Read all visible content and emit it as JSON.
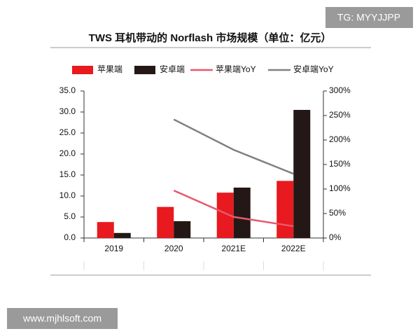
{
  "watermarks": [
    "TG: MYYJJPP",
    "www.mjhlsoft.com"
  ],
  "chart_data": {
    "type": "bar",
    "title": "TWS 耳机带动的 Norflash 市场规模（单位：亿元）",
    "categories": [
      "2019",
      "2020",
      "2021E",
      "2022E"
    ],
    "series": [
      {
        "name": "苹果端",
        "type": "bar",
        "color": "#e8191f",
        "values": [
          3.8,
          7.4,
          10.8,
          13.6
        ]
      },
      {
        "name": "安卓端",
        "type": "bar",
        "color": "#231815",
        "values": [
          1.2,
          4.0,
          12.0,
          30.5
        ]
      },
      {
        "name": "苹果端YoY",
        "type": "line",
        "axis": "y2",
        "color": "#e8586e",
        "values": [
          null,
          97,
          43,
          24
        ]
      },
      {
        "name": "安卓端YoY",
        "type": "line",
        "axis": "y2",
        "color": "#808080",
        "values": [
          null,
          242,
          180,
          131
        ]
      }
    ],
    "ylim": [
      0,
      35
    ],
    "yticks": [
      {
        "value": 0,
        "label": "0.0"
      },
      {
        "value": 5,
        "label": "5.0"
      },
      {
        "value": 10,
        "label": "10.0"
      },
      {
        "value": 15,
        "label": "15.0"
      },
      {
        "value": 20,
        "label": "20.0"
      },
      {
        "value": 25,
        "label": "25.0"
      },
      {
        "value": 30,
        "label": "30.0"
      },
      {
        "value": 35,
        "label": "35.0"
      }
    ],
    "y2lim": [
      0,
      300
    ],
    "y2ticks": [
      {
        "value": 0,
        "label": "0%"
      },
      {
        "value": 50,
        "label": "50%"
      },
      {
        "value": 100,
        "label": "100%"
      },
      {
        "value": 150,
        "label": "150%"
      },
      {
        "value": 200,
        "label": "200%"
      },
      {
        "value": 250,
        "label": "250%"
      },
      {
        "value": 300,
        "label": "300%"
      }
    ],
    "legend": "top"
  }
}
